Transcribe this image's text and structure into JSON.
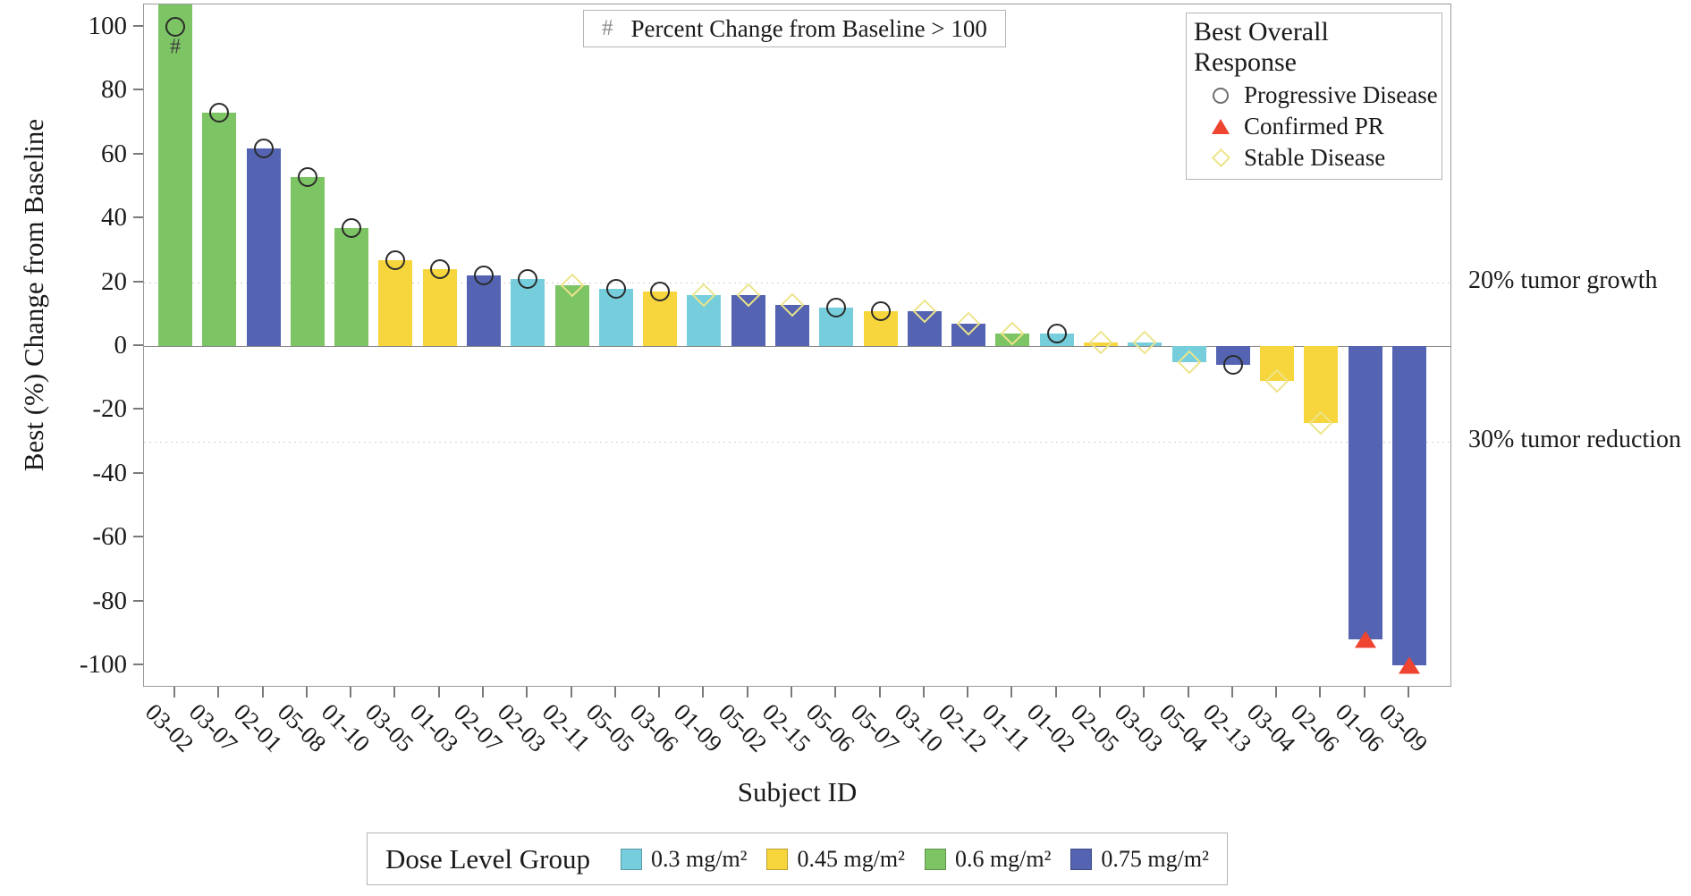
{
  "chart_data": {
    "type": "bar",
    "subtype": "waterfall",
    "xlabel": "Subject ID",
    "ylabel": "Best (%) Change from Baseline",
    "ylim": [
      -107,
      107
    ],
    "yticks": [
      100,
      80,
      60,
      40,
      20,
      0,
      -20,
      -40,
      -60,
      -80,
      -100
    ],
    "grid": "reference-lines-only",
    "reference_lines": [
      {
        "value": 20,
        "label": "20% tumor growth"
      },
      {
        "value": -30,
        "label": "30% tumor reduction"
      }
    ],
    "flag_note": {
      "symbol": "#",
      "label": "Percent Change from Baseline > 100"
    },
    "response_legend": {
      "title": "Best Overall Response",
      "entries": [
        {
          "marker": "circle",
          "response": "PD",
          "label": "Progressive Disease"
        },
        {
          "marker": "triangle",
          "response": "PR",
          "label": "Confirmed PR"
        },
        {
          "marker": "diamond",
          "response": "SD",
          "label": "Stable Disease"
        }
      ]
    },
    "dose_legend": {
      "title": "Dose Level Group",
      "entries": [
        {
          "dose": "0.3",
          "color": "#76CEDC",
          "label": "0.3 mg/m²"
        },
        {
          "dose": "0.45",
          "color": "#F7D53C",
          "label": "0.45 mg/m²"
        },
        {
          "dose": "0.6",
          "color": "#7DC464",
          "label": "0.6 mg/m²"
        },
        {
          "dose": "0.75",
          "color": "#5464B2",
          "label": "0.75 mg/m²"
        }
      ]
    },
    "marker_colors": {
      "circle_stroke": "#2b2b2b",
      "diamond_stroke": "#ece48a",
      "triangle_fill": "#ee4430"
    },
    "subjects": [
      {
        "id": "03-02",
        "value": 107,
        "clipped": true,
        "marker_value": 100,
        "dose": "0.6",
        "response": "PD",
        "flag": "#"
      },
      {
        "id": "03-07",
        "value": 73,
        "dose": "0.6",
        "response": "PD"
      },
      {
        "id": "02-01",
        "value": 62,
        "dose": "0.75",
        "response": "PD"
      },
      {
        "id": "05-08",
        "value": 53,
        "dose": "0.6",
        "response": "PD"
      },
      {
        "id": "01-10",
        "value": 37,
        "dose": "0.6",
        "response": "PD"
      },
      {
        "id": "03-05",
        "value": 27,
        "dose": "0.45",
        "response": "PD"
      },
      {
        "id": "01-03",
        "value": 24,
        "dose": "0.45",
        "response": "PD"
      },
      {
        "id": "02-07",
        "value": 22,
        "dose": "0.75",
        "response": "PD"
      },
      {
        "id": "02-03",
        "value": 21,
        "dose": "0.3",
        "response": "PD"
      },
      {
        "id": "02-11",
        "value": 19,
        "dose": "0.6",
        "response": "SD"
      },
      {
        "id": "05-05",
        "value": 18,
        "dose": "0.3",
        "response": "PD"
      },
      {
        "id": "03-06",
        "value": 17,
        "dose": "0.45",
        "response": "PD"
      },
      {
        "id": "01-09",
        "value": 16,
        "dose": "0.3",
        "response": "SD"
      },
      {
        "id": "05-02",
        "value": 16,
        "dose": "0.75",
        "response": "SD"
      },
      {
        "id": "02-15",
        "value": 13,
        "dose": "0.75",
        "response": "SD"
      },
      {
        "id": "05-06",
        "value": 12,
        "dose": "0.3",
        "response": "PD"
      },
      {
        "id": "05-07",
        "value": 11,
        "dose": "0.45",
        "response": "PD"
      },
      {
        "id": "03-10",
        "value": 11,
        "dose": "0.75",
        "response": "SD"
      },
      {
        "id": "02-12",
        "value": 7,
        "dose": "0.75",
        "response": "SD"
      },
      {
        "id": "01-11",
        "value": 4,
        "dose": "0.6",
        "response": "SD"
      },
      {
        "id": "01-02",
        "value": 4,
        "dose": "0.3",
        "response": "PD"
      },
      {
        "id": "02-05",
        "value": 1,
        "dose": "0.45",
        "response": "SD"
      },
      {
        "id": "03-03",
        "value": 1,
        "dose": "0.3",
        "response": "SD"
      },
      {
        "id": "05-04",
        "value": -5,
        "dose": "0.3",
        "response": "SD"
      },
      {
        "id": "02-13",
        "value": -6,
        "dose": "0.75",
        "response": "PD"
      },
      {
        "id": "03-04",
        "value": -11,
        "dose": "0.45",
        "response": "SD"
      },
      {
        "id": "02-06",
        "value": -24,
        "dose": "0.45",
        "response": "SD"
      },
      {
        "id": "01-06",
        "value": -92,
        "dose": "0.75",
        "response": "PR"
      },
      {
        "id": "03-09",
        "value": -100,
        "dose": "0.75",
        "response": "PR"
      }
    ]
  }
}
